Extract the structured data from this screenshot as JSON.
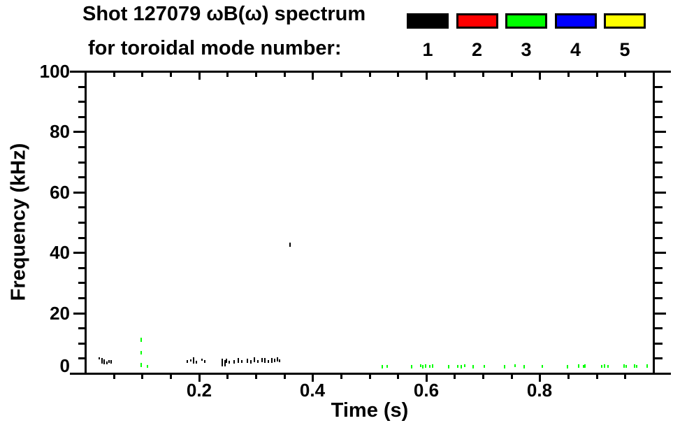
{
  "header": {
    "title_line1": "Shot 127079 ωB(ω) spectrum",
    "title_line2": "for toroidal mode number:"
  },
  "legend": {
    "modes": [
      {
        "label": "1",
        "color": "#000000"
      },
      {
        "label": "2",
        "color": "#ff0000"
      },
      {
        "label": "3",
        "color": "#00ff00"
      },
      {
        "label": "4",
        "color": "#0000ff"
      },
      {
        "label": "5",
        "color": "#ffff00"
      }
    ]
  },
  "axes": {
    "x_label": "Time (s)",
    "y_label": "Frequency (kHz)",
    "x_tick_labels": [
      "0.2",
      "0.4",
      "0.6",
      "0.8"
    ],
    "y_tick_labels": [
      "0",
      "20",
      "40",
      "60",
      "80",
      "100"
    ]
  },
  "chart_data": {
    "type": "scatter",
    "title": "Shot 127079 ωB(ω) spectrum for toroidal mode number",
    "xlabel": "Time (s)",
    "ylabel": "Frequency (kHz)",
    "xlim": [
      0,
      1.0
    ],
    "ylim": [
      0,
      100
    ],
    "x_major_ticks": [
      0.2,
      0.4,
      0.6,
      0.8
    ],
    "x_minor_step": 0.05,
    "y_major_ticks": [
      0,
      20,
      40,
      60,
      80,
      100
    ],
    "y_minor_step": 5,
    "grid": false,
    "legend_position": "top-right",
    "point_format": "[time_s, freq_kHz, vertical_extent_kHz]",
    "series": [
      {
        "name": "mode 1",
        "color": "#000000",
        "points": [
          [
            0.025,
            5.0,
            0.7
          ],
          [
            0.029,
            4.2,
            1.9
          ],
          [
            0.033,
            3.9,
            1.6
          ],
          [
            0.038,
            3.6,
            0.9
          ],
          [
            0.042,
            3.9,
            0.9
          ],
          [
            0.045,
            3.8,
            1.2
          ],
          [
            0.18,
            3.9,
            0.9
          ],
          [
            0.186,
            4.2,
            0.7
          ],
          [
            0.191,
            4.2,
            2.1
          ],
          [
            0.196,
            3.7,
            0.9
          ],
          [
            0.205,
            4.5,
            0.7
          ],
          [
            0.21,
            3.9,
            0.9
          ],
          [
            0.241,
            3.7,
            2.5
          ],
          [
            0.246,
            3.5,
            2.0
          ],
          [
            0.249,
            4.2,
            1.4
          ],
          [
            0.253,
            3.7,
            0.9
          ],
          [
            0.262,
            3.9,
            1.2
          ],
          [
            0.269,
            4.4,
            1.6
          ],
          [
            0.275,
            3.9,
            0.9
          ],
          [
            0.285,
            4.2,
            1.4
          ],
          [
            0.291,
            3.9,
            1.2
          ],
          [
            0.298,
            4.6,
            1.6
          ],
          [
            0.304,
            3.9,
            0.9
          ],
          [
            0.311,
            4.4,
            1.4
          ],
          [
            0.316,
            4.2,
            1.6
          ],
          [
            0.322,
            3.9,
            0.9
          ],
          [
            0.328,
            4.4,
            1.6
          ],
          [
            0.333,
            4.2,
            1.2
          ],
          [
            0.338,
            4.6,
            1.4
          ],
          [
            0.342,
            4.2,
            0.9
          ],
          [
            0.36,
            42.5,
            1.4
          ]
        ]
      },
      {
        "name": "mode 2",
        "color": "#ff0000",
        "points": []
      },
      {
        "name": "mode 3",
        "color": "#00ff00",
        "points": [
          [
            0.098,
            11.2,
            1.4
          ],
          [
            0.098,
            6.7,
            1.2
          ],
          [
            0.098,
            2.7,
            1.4
          ],
          [
            0.109,
            2.4,
            0.9
          ],
          [
            0.523,
            2.2,
            1.2
          ],
          [
            0.531,
            2.3,
            1.0
          ],
          [
            0.575,
            2.2,
            1.2
          ],
          [
            0.59,
            2.4,
            1.0
          ],
          [
            0.594,
            2.2,
            1.2
          ],
          [
            0.599,
            2.3,
            1.2
          ],
          [
            0.606,
            2.2,
            1.0
          ],
          [
            0.611,
            2.4,
            1.2
          ],
          [
            0.64,
            2.2,
            1.2
          ],
          [
            0.656,
            2.3,
            1.0
          ],
          [
            0.662,
            2.2,
            1.2
          ],
          [
            0.668,
            2.4,
            1.0
          ],
          [
            0.683,
            2.2,
            1.2
          ],
          [
            0.702,
            2.3,
            1.0
          ],
          [
            0.738,
            2.2,
            1.2
          ],
          [
            0.756,
            2.4,
            1.0
          ],
          [
            0.773,
            2.2,
            1.2
          ],
          [
            0.804,
            2.3,
            1.0
          ],
          [
            0.849,
            2.2,
            1.2
          ],
          [
            0.868,
            2.4,
            1.2
          ],
          [
            0.877,
            2.2,
            1.0
          ],
          [
            0.88,
            2.3,
            1.2
          ],
          [
            0.909,
            2.2,
            1.0
          ],
          [
            0.914,
            2.4,
            1.2
          ],
          [
            0.92,
            2.2,
            1.0
          ],
          [
            0.948,
            2.3,
            1.2
          ],
          [
            0.952,
            2.2,
            1.0
          ],
          [
            0.967,
            2.4,
            1.2
          ],
          [
            0.97,
            2.2,
            1.0
          ],
          [
            0.989,
            2.3,
            1.2
          ]
        ]
      },
      {
        "name": "mode 4",
        "color": "#0000ff",
        "points": []
      },
      {
        "name": "mode 5",
        "color": "#ffff00",
        "points": []
      }
    ]
  }
}
